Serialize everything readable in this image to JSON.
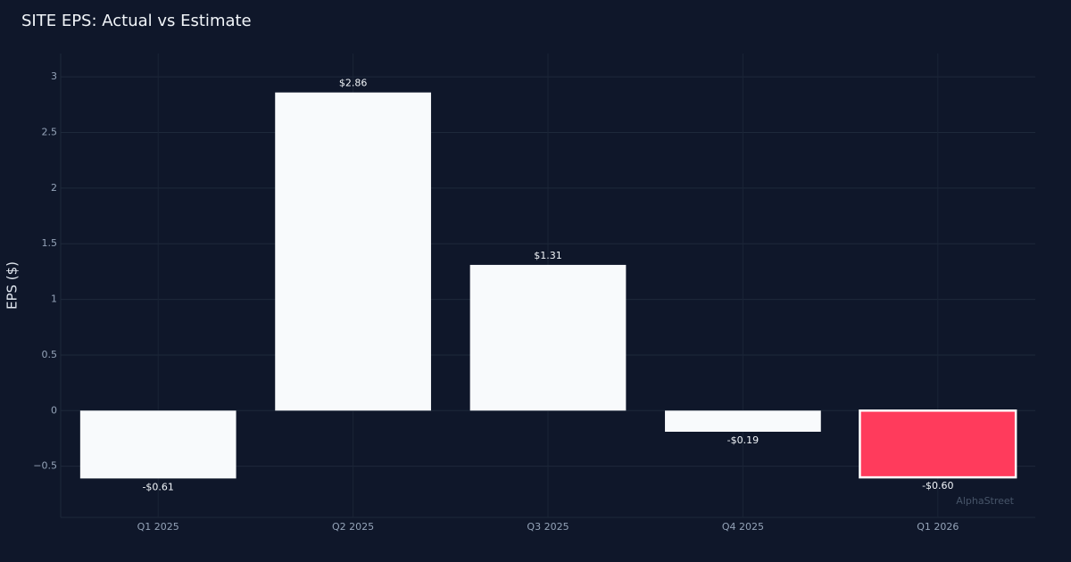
{
  "chart_data": {
    "type": "bar",
    "title": "SITE EPS: Actual vs Estimate",
    "y_label": "EPS ($)",
    "categories": [
      "Q1 2025",
      "Q2 2025",
      "Q3 2025",
      "Q4 2025",
      "Q1 2026"
    ],
    "values": [
      -0.61,
      2.86,
      1.31,
      -0.19,
      -0.6
    ],
    "value_labels": [
      "-$0.61",
      "$2.86",
      "$1.31",
      "-$0.19",
      "-$0.60"
    ],
    "colors": [
      "#f8fafc",
      "#f8fafc",
      "#f8fafc",
      "#f8fafc",
      "#ff3b5c"
    ],
    "ylim": [
      -0.96,
      3.21
    ],
    "yticks": [
      {
        "value": -0.5,
        "label": "−0.5"
      },
      0,
      0.5,
      1,
      1.5,
      2,
      2.5,
      3
    ],
    "grid": true,
    "watermark": "AlphaStreet"
  }
}
